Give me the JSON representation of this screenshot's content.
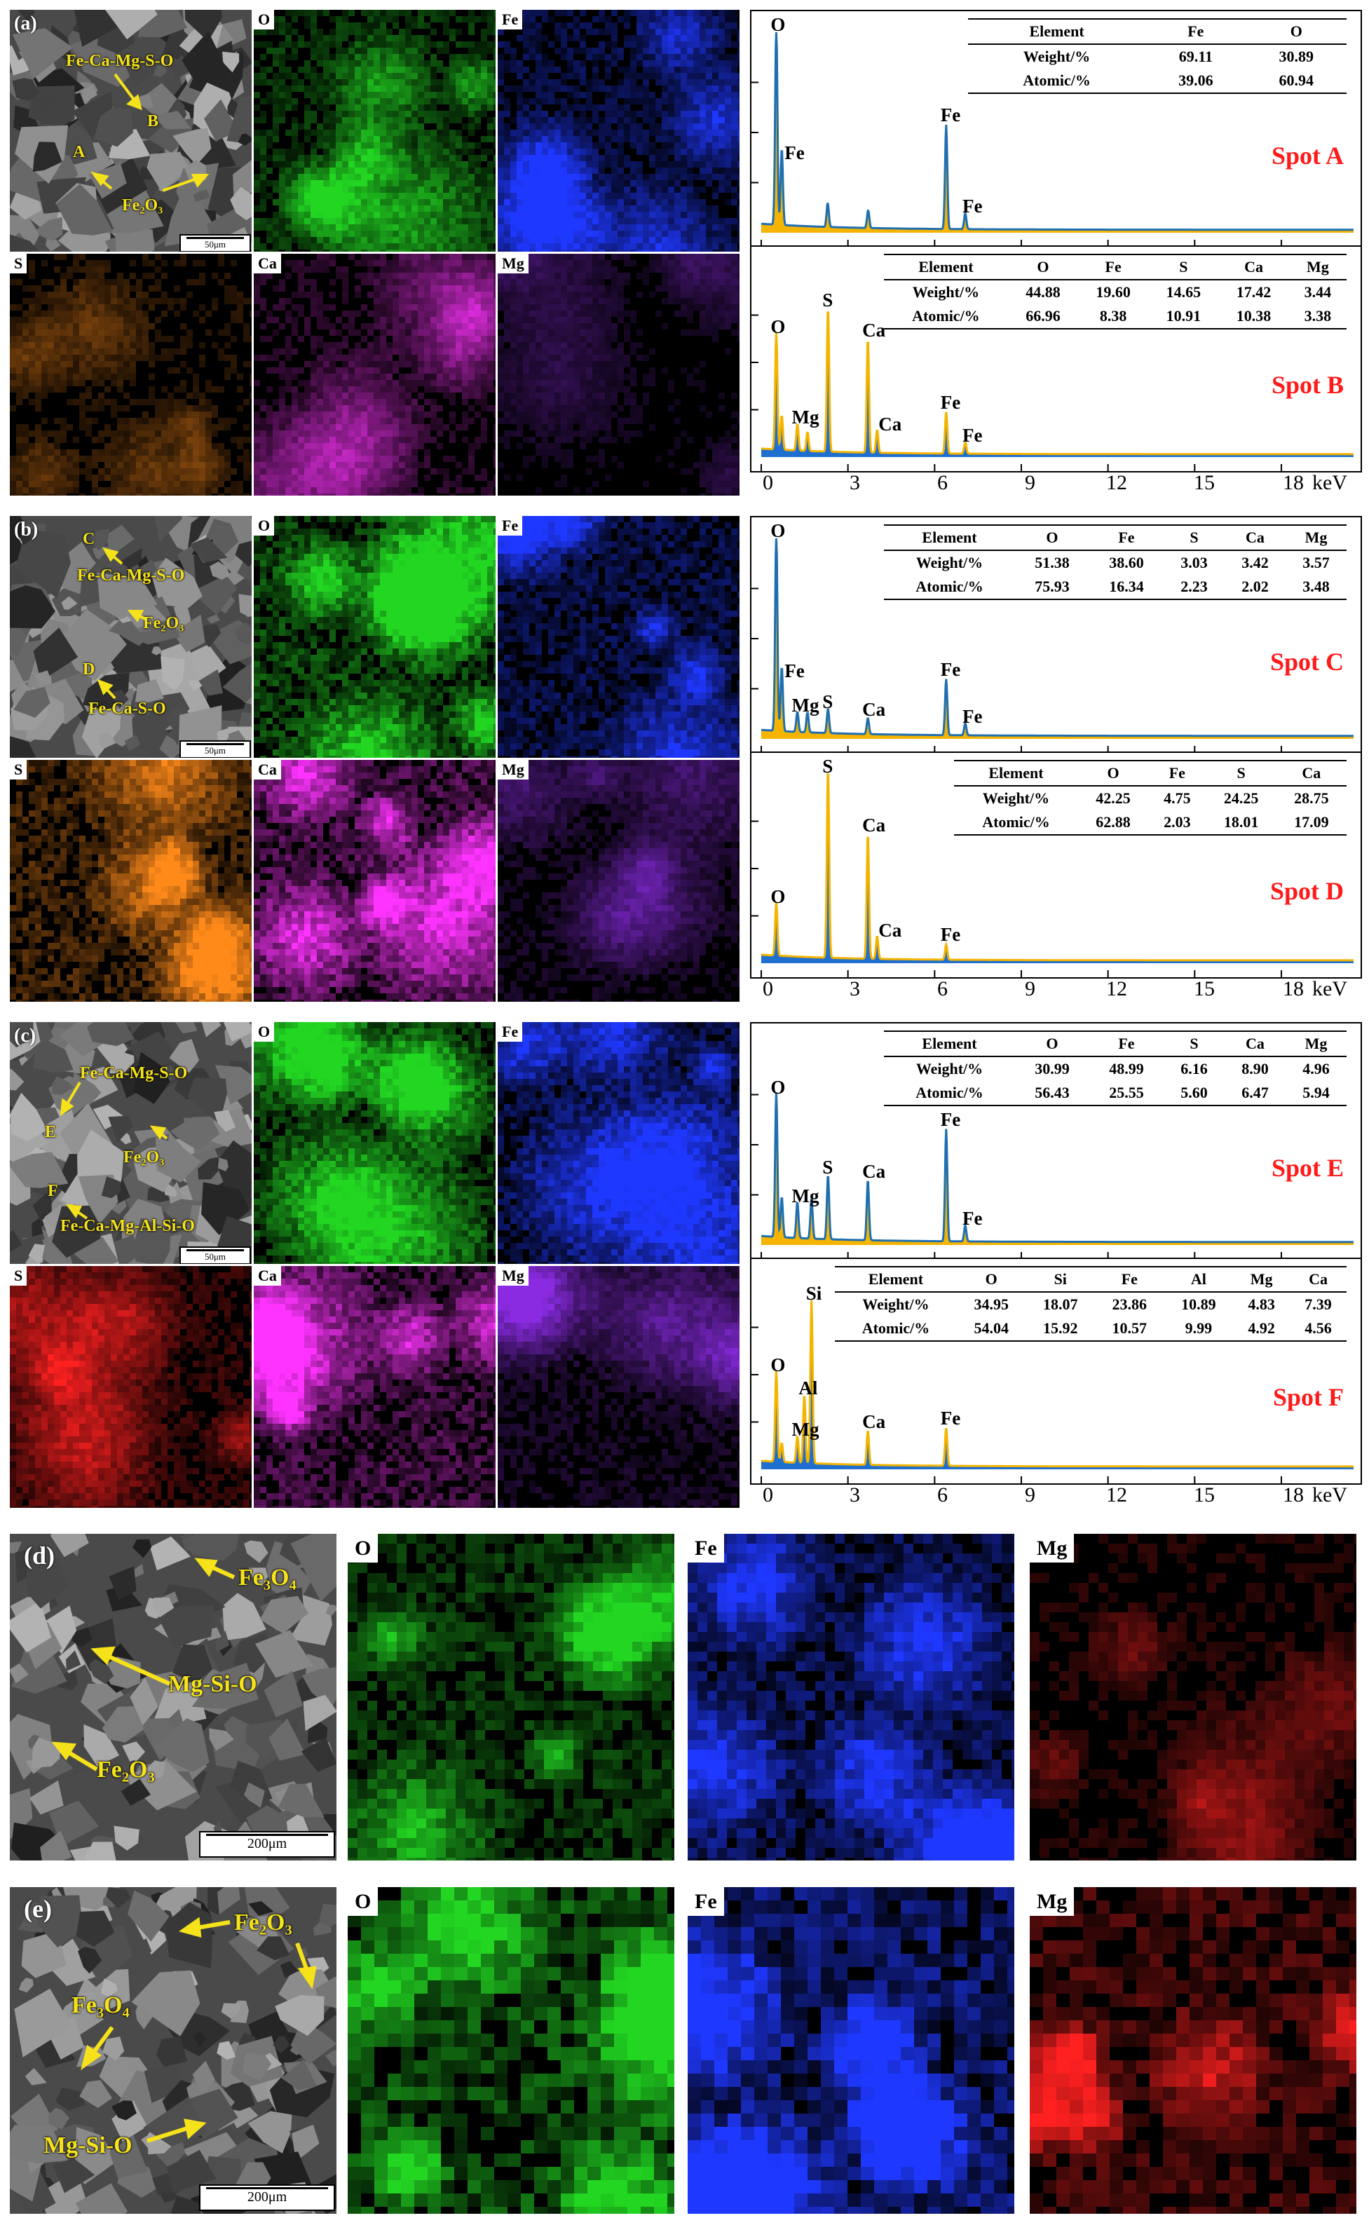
{
  "panels": [
    {
      "letter": "(a)",
      "scale": "50μm",
      "annotations": [
        "Fe-Ca-Mg-S-O",
        "B",
        "A",
        "Fe₂O₃"
      ],
      "maps": [
        "O",
        "Fe",
        "S",
        "Ca",
        "Mg"
      ]
    },
    {
      "letter": "(b)",
      "scale": "50μm",
      "annotations": [
        "C",
        "Fe-Ca-Mg-S-O",
        "Fe₂O₃",
        "D",
        "Fe-Ca-S-O"
      ],
      "maps": [
        "O",
        "Fe",
        "S",
        "Ca",
        "Mg"
      ]
    },
    {
      "letter": "(c)",
      "scale": "50μm",
      "annotations": [
        "Fe-Ca-Mg-S-O",
        "E",
        "Fe₂O₃",
        "F",
        "Fe-Ca-Mg-Al-Si-O"
      ],
      "maps": [
        "O",
        "Fe",
        "S",
        "Ca",
        "Mg"
      ]
    },
    {
      "letter": "(d)",
      "scale": "200μm",
      "annotations": [
        "Fe₃O₄",
        "Mg-Si-O",
        "Fe₂O₃"
      ],
      "maps": [
        "O",
        "Fe",
        "Mg"
      ]
    },
    {
      "letter": "(e)",
      "scale": "200μm",
      "annotations": [
        "Fe₂O₃",
        "Fe₃O₄",
        "Mg-Si-O"
      ],
      "maps": [
        "O",
        "Fe",
        "Mg"
      ]
    }
  ],
  "colors": {
    "O": "#22d622",
    "Fe": "#1f38ff",
    "S_a": "#ff8a1a",
    "S_c": "#ff2020",
    "Ca": "#ff33ff",
    "Mg": "#8a2be2",
    "Mg_de": "#ff2020",
    "spectrum_fill": "#f5b400",
    "spectrum_fill_blue": "#1f6fd0",
    "spectrum_line": "#1f6fb0",
    "spot_label": "#ff1a1a",
    "annotation": "#f5e21a"
  },
  "x_axis_ticks": [
    "0",
    "3",
    "6",
    "9",
    "12",
    "15",
    "18"
  ],
  "x_axis_unit": "keV",
  "chart_data": [
    {
      "type": "line",
      "title": "Spot A",
      "xlabel": "keV",
      "xlim": [
        0,
        20.5
      ],
      "peaks": [
        {
          "label": "O",
          "x": 0.52,
          "y": 100
        },
        {
          "label": "Fe",
          "x": 0.71,
          "y": 38
        },
        {
          "label": "Fe",
          "x": 6.4,
          "y": 52
        },
        {
          "label": "Fe",
          "x": 7.06,
          "y": 8
        }
      ],
      "extra_peaks": [
        {
          "x": 2.3,
          "y": 12
        },
        {
          "x": 3.7,
          "y": 9
        }
      ],
      "table": {
        "columns": [
          "Element",
          "Fe",
          "O"
        ],
        "rows": [
          [
            "Weight/%",
            "69.11",
            "30.89"
          ],
          [
            "Atomic/%",
            "39.06",
            "60.94"
          ]
        ]
      }
    },
    {
      "type": "line",
      "title": "Spot B",
      "xlabel": "keV",
      "xlim": [
        0,
        20.5
      ],
      "peaks": [
        {
          "label": "O",
          "x": 0.52,
          "y": 62
        },
        {
          "label": "Mg",
          "x": 1.25,
          "y": 14
        },
        {
          "label": "S",
          "x": 2.31,
          "y": 76
        },
        {
          "label": "Ca",
          "x": 3.69,
          "y": 60
        },
        {
          "label": "Ca",
          "x": 4.01,
          "y": 12
        },
        {
          "label": "Fe",
          "x": 6.4,
          "y": 22
        },
        {
          "label": "Fe",
          "x": 7.06,
          "y": 6
        }
      ],
      "extra_peaks": [
        {
          "x": 0.71,
          "y": 18
        },
        {
          "x": 1.6,
          "y": 10
        }
      ],
      "table": {
        "columns": [
          "Element",
          "O",
          "Fe",
          "S",
          "Ca",
          "Mg"
        ],
        "rows": [
          [
            "Weight/%",
            "44.88",
            "19.60",
            "14.65",
            "17.42",
            "3.44"
          ],
          [
            "Atomic/%",
            "66.96",
            "8.38",
            "10.91",
            "10.38",
            "3.38"
          ]
        ]
      }
    },
    {
      "type": "line",
      "title": "Spot C",
      "xlabel": "keV",
      "xlim": [
        0,
        20.5
      ],
      "peaks": [
        {
          "label": "O",
          "x": 0.52,
          "y": 100
        },
        {
          "label": "Fe",
          "x": 0.71,
          "y": 32
        },
        {
          "label": "Mg",
          "x": 1.25,
          "y": 10
        },
        {
          "label": "S",
          "x": 2.31,
          "y": 12
        },
        {
          "label": "Ca",
          "x": 3.69,
          "y": 8
        },
        {
          "label": "Fe",
          "x": 6.4,
          "y": 28
        },
        {
          "label": "Fe",
          "x": 7.06,
          "y": 6
        }
      ],
      "extra_peaks": [
        {
          "x": 1.6,
          "y": 10
        }
      ],
      "table": {
        "columns": [
          "Element",
          "O",
          "Fe",
          "S",
          "Ca",
          "Mg"
        ],
        "rows": [
          [
            "Weight/%",
            "51.38",
            "38.60",
            "3.03",
            "3.42",
            "3.57"
          ],
          [
            "Atomic/%",
            "75.93",
            "16.34",
            "2.23",
            "2.02",
            "3.48"
          ]
        ]
      }
    },
    {
      "type": "line",
      "title": "Spot D",
      "xlabel": "keV",
      "xlim": [
        0,
        20.5
      ],
      "peaks": [
        {
          "label": "O",
          "x": 0.52,
          "y": 28
        },
        {
          "label": "S",
          "x": 2.31,
          "y": 100
        },
        {
          "label": "Ca",
          "x": 3.69,
          "y": 66
        },
        {
          "label": "Ca",
          "x": 4.01,
          "y": 12
        },
        {
          "label": "Fe",
          "x": 6.4,
          "y": 8
        }
      ],
      "extra_peaks": [],
      "table": {
        "columns": [
          "Element",
          "O",
          "Fe",
          "S",
          "Ca"
        ],
        "rows": [
          [
            "Weight/%",
            "42.25",
            "4.75",
            "24.25",
            "28.75"
          ],
          [
            "Atomic/%",
            "62.88",
            "2.03",
            "18.01",
            "17.09"
          ]
        ]
      }
    },
    {
      "type": "line",
      "title": "Spot E",
      "xlabel": "keV",
      "xlim": [
        0,
        20.5
      ],
      "peaks": [
        {
          "label": "O",
          "x": 0.52,
          "y": 72
        },
        {
          "label": "Mg",
          "x": 1.25,
          "y": 18
        },
        {
          "label": "S",
          "x": 2.31,
          "y": 32
        },
        {
          "label": "Ca",
          "x": 3.69,
          "y": 30
        },
        {
          "label": "Fe",
          "x": 6.4,
          "y": 56
        },
        {
          "label": "Fe",
          "x": 7.06,
          "y": 8
        }
      ],
      "extra_peaks": [
        {
          "x": 0.71,
          "y": 20
        },
        {
          "x": 1.74,
          "y": 20
        }
      ],
      "table": {
        "columns": [
          "Element",
          "O",
          "Fe",
          "S",
          "Ca",
          "Mg"
        ],
        "rows": [
          [
            "Weight/%",
            "30.99",
            "48.99",
            "6.16",
            "8.90",
            "4.96"
          ],
          [
            "Atomic/%",
            "56.43",
            "25.55",
            "5.60",
            "6.47",
            "5.94"
          ]
        ]
      }
    },
    {
      "type": "line",
      "title": "Spot F",
      "xlabel": "keV",
      "xlim": [
        0,
        20.5
      ],
      "peaks": [
        {
          "label": "O",
          "x": 0.52,
          "y": 48
        },
        {
          "label": "Mg",
          "x": 1.25,
          "y": 14
        },
        {
          "label": "Al",
          "x": 1.49,
          "y": 36
        },
        {
          "label": "Si",
          "x": 1.74,
          "y": 86
        },
        {
          "label": "Ca",
          "x": 3.69,
          "y": 18
        },
        {
          "label": "Fe",
          "x": 6.4,
          "y": 20
        }
      ],
      "extra_peaks": [
        {
          "x": 0.71,
          "y": 10
        }
      ],
      "table": {
        "columns": [
          "Element",
          "O",
          "Si",
          "Fe",
          "Al",
          "Mg",
          "Ca"
        ],
        "rows": [
          [
            "Weight/%",
            "34.95",
            "18.07",
            "23.86",
            "10.89",
            "4.83",
            "7.39"
          ],
          [
            "Atomic/%",
            "54.04",
            "15.92",
            "10.57",
            "9.99",
            "4.92",
            "4.56"
          ]
        ]
      }
    }
  ]
}
